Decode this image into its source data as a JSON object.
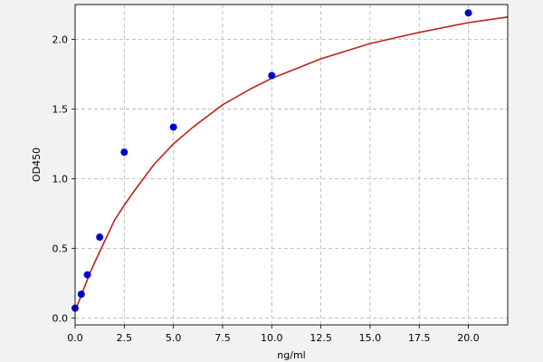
{
  "chart_data": {
    "type": "scatter",
    "title": "",
    "xlabel": "ng/ml",
    "ylabel": "OD450",
    "xlim": [
      0,
      22
    ],
    "ylim": [
      -0.05,
      2.25
    ],
    "xticks": [
      0.0,
      2.5,
      5.0,
      7.5,
      10.0,
      12.5,
      15.0,
      17.5,
      20.0
    ],
    "xtick_labels": [
      "0.0",
      "2.5",
      "5.0",
      "7.5",
      "10.0",
      "12.5",
      "15.0",
      "17.5",
      "20.0"
    ],
    "yticks": [
      0.0,
      0.5,
      1.0,
      1.5,
      2.0
    ],
    "ytick_labels": [
      "0.0",
      "0.5",
      "1.0",
      "1.5",
      "2.0"
    ],
    "grid": true,
    "series": [
      {
        "type": "scatter",
        "color": "#0000cc",
        "x": [
          0.0,
          0.3125,
          0.625,
          1.25,
          2.5,
          5.0,
          10.0,
          20.0
        ],
        "y": [
          0.07,
          0.17,
          0.31,
          0.58,
          1.19,
          1.37,
          1.74,
          2.19
        ]
      },
      {
        "type": "line",
        "color": "#c0201b",
        "x": [
          0.0,
          0.25,
          0.5,
          0.75,
          1.0,
          1.5,
          2.0,
          2.5,
          3.0,
          4.0,
          5.0,
          6.0,
          7.5,
          9.0,
          10.0,
          12.5,
          15.0,
          17.5,
          20.0,
          22.0
        ],
        "y": [
          0.05,
          0.14,
          0.23,
          0.32,
          0.4,
          0.55,
          0.7,
          0.81,
          0.91,
          1.1,
          1.25,
          1.37,
          1.53,
          1.65,
          1.72,
          1.86,
          1.97,
          2.05,
          2.12,
          2.16
        ]
      }
    ]
  }
}
